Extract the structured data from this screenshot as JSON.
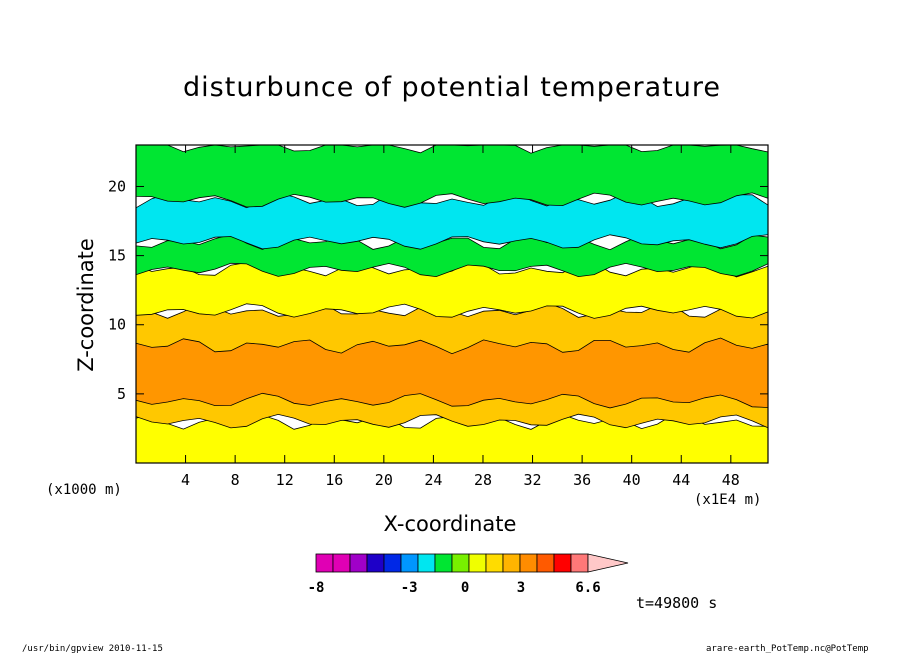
{
  "chart_data": {
    "type": "heatmap",
    "title": "disturbunce of potential temperature",
    "xlabel": "X-coordinate",
    "ylabel": "Z-coordinate",
    "x_unit": "(x1000 m)",
    "x_exponent": "(x1E4 m)",
    "xlim": [
      0,
      51
    ],
    "ylim": [
      0,
      23
    ],
    "x_ticks": [
      4,
      8,
      12,
      16,
      20,
      24,
      28,
      32,
      36,
      40,
      44,
      48
    ],
    "y_ticks": [
      5,
      10,
      15,
      20
    ],
    "colorbar": {
      "levels": [
        -8,
        -7,
        -6,
        -5,
        -4,
        -3,
        -2,
        -1,
        0,
        1,
        2,
        3,
        4,
        5,
        6.6
      ],
      "colors": [
        "#e000b4",
        "#e000b4",
        "#a000c8",
        "#1e00c8",
        "#0028e6",
        "#0096ff",
        "#00e6f0",
        "#00e632",
        "#78f000",
        "#f0ff00",
        "#ffdc00",
        "#ffb400",
        "#ff8c00",
        "#ff5a00",
        "#ff0000",
        "#ff7878",
        "#ffc8c8"
      ],
      "tick_labels": [
        "-8",
        "-3",
        "0",
        "3",
        "6.6"
      ]
    },
    "band_structure": [
      {
        "z_range": [
          0,
          3
        ],
        "value_range": [
          0,
          1
        ],
        "color": "#ffff00"
      },
      {
        "z_range": [
          3,
          11
        ],
        "value_range": [
          1,
          3
        ],
        "color": "#ffc800"
      },
      {
        "z_range": [
          4.5,
          8.5
        ],
        "value_range": [
          2,
          3
        ],
        "color": "#ff9600"
      },
      {
        "z_range": [
          11,
          14
        ],
        "value_range": [
          0,
          1
        ],
        "color": "#ffff00"
      },
      {
        "z_range": [
          14,
          16
        ],
        "value_range": [
          -1,
          0
        ],
        "color": "#00e632"
      },
      {
        "z_range": [
          16,
          19
        ],
        "value_range": [
          -3,
          -1
        ],
        "color": "#00e6f0"
      },
      {
        "z_range": [
          19,
          23
        ],
        "value_range": [
          -1,
          0
        ],
        "color": "#00e632"
      }
    ],
    "grid": false
  },
  "time_label": "t=49800 s",
  "footer_left": "/usr/bin/gpview  2010-11-15",
  "footer_right": "arare-earth_PotTemp.nc@PotTemp"
}
